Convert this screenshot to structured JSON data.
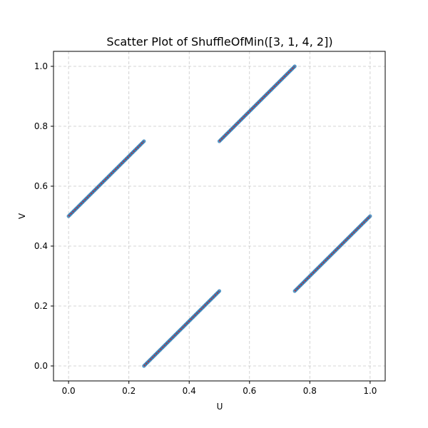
{
  "chart_data": {
    "type": "scatter",
    "title": "Scatter Plot of ShuffleOfMin([3, 1, 4, 2])",
    "xlabel": "U",
    "ylabel": "V",
    "xlim": [
      -0.05,
      1.05
    ],
    "ylim": [
      -0.05,
      1.05
    ],
    "xticks": [
      "0.0",
      "0.2",
      "0.4",
      "0.6",
      "0.8",
      "1.0"
    ],
    "yticks": [
      "0.0",
      "0.2",
      "0.4",
      "0.6",
      "0.8",
      "1.0"
    ],
    "grid": true,
    "point_color": "#1f77b4",
    "line_color": "#d62728",
    "segments": [
      {
        "x": [
          0.0,
          0.25
        ],
        "y": [
          0.5,
          0.75
        ]
      },
      {
        "x": [
          0.25,
          0.5
        ],
        "y": [
          0.0,
          0.25
        ]
      },
      {
        "x": [
          0.5,
          0.75
        ],
        "y": [
          0.75,
          1.0
        ]
      },
      {
        "x": [
          0.75,
          1.0
        ],
        "y": [
          0.25,
          0.5
        ]
      }
    ]
  }
}
